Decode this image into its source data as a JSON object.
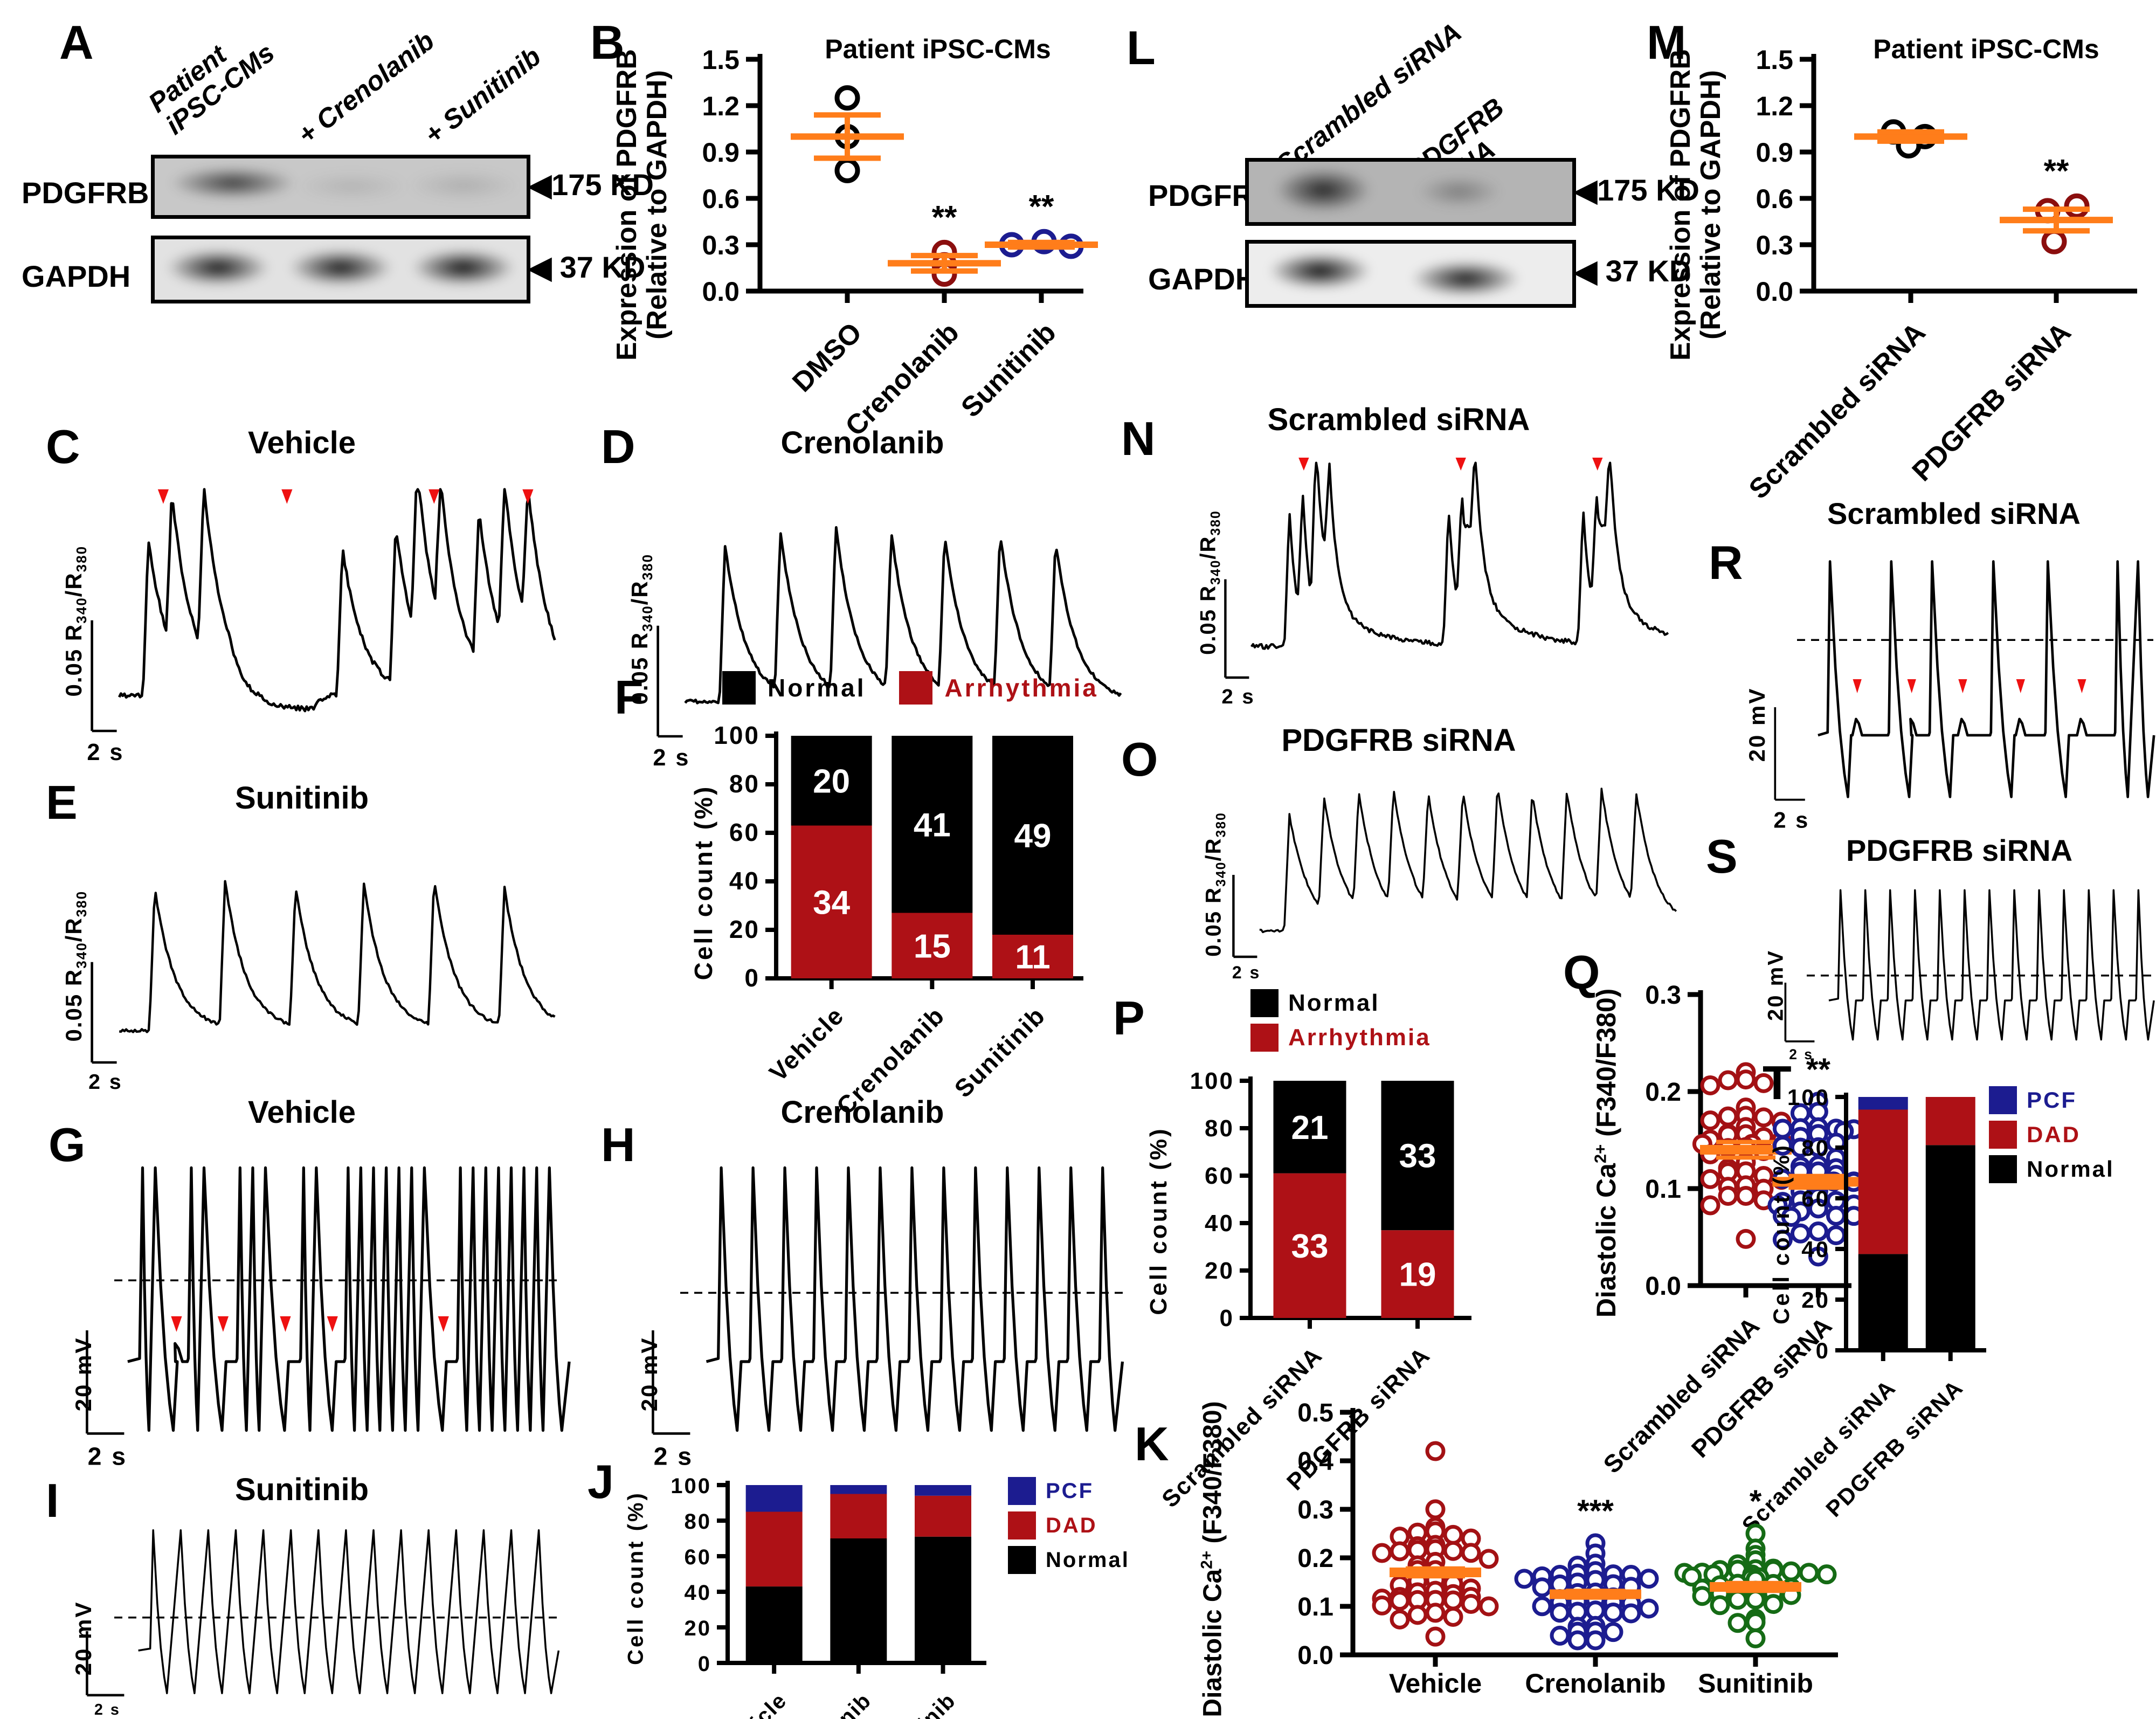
{
  "icons": {
    "band_marker_left": "◀"
  },
  "colors": {
    "mean_bar_orange": "#FF7D1A",
    "arrhythmia_red": "#AE1116",
    "pcf_navy": "#1C1C90",
    "point_dark_red": "#A31114",
    "point_navy": "#1C1C90",
    "point_green": "#156B15",
    "trace_black": "#000000",
    "arrow_red": "#EE1111"
  },
  "panels": {
    "A": {
      "letter": "A",
      "lanes": [
        "Patient iPSC-CMs",
        "+ Crenolanib",
        "+ Sunitinib"
      ],
      "protein1": "PDGFRB",
      "protein2": "GAPDH",
      "marker1": "175 KD",
      "marker2": "37 KD"
    },
    "B": {
      "letter": "B"
    },
    "C": {
      "letter": "C"
    },
    "D": {
      "letter": "D"
    },
    "E": {
      "letter": "E"
    },
    "F": {
      "letter": "F"
    },
    "G": {
      "letter": "G"
    },
    "H": {
      "letter": "H"
    },
    "I": {
      "letter": "I"
    },
    "J": {
      "letter": "J"
    },
    "K": {
      "letter": "K"
    },
    "L": {
      "letter": "L",
      "lanes": [
        "Scrambled siRNA",
        "PDGFRB siRNA"
      ],
      "protein1": "PDGFRB",
      "protein2": "GAPDH",
      "marker1": "175 KD",
      "marker2": "37 KD"
    },
    "M": {
      "letter": "M"
    },
    "N": {
      "letter": "N"
    },
    "O": {
      "letter": "O"
    },
    "P": {
      "letter": "P"
    },
    "Q": {
      "letter": "Q"
    },
    "R": {
      "letter": "R"
    },
    "S": {
      "letter": "S"
    },
    "T": {
      "letter": "T"
    }
  },
  "chart_data": [
    {
      "id": "B",
      "type": "scatter",
      "title": "Patient iPSC-CMs",
      "ylabel": [
        "Expression of PDGFRB",
        "(Relative to GAPDH)"
      ],
      "ylim": [
        0,
        1.5
      ],
      "yticks": [
        0,
        0.3,
        0.6,
        0.9,
        1.2,
        1.5
      ],
      "layout": {
        "x0": 150,
        "y0": 50,
        "pw": 600,
        "ph": 430,
        "centers": [
          0.27,
          0.57,
          0.87
        ]
      },
      "categories": [
        "DMSO",
        "Crenolanib",
        "Sunitinib"
      ],
      "groups": [
        {
          "name": "DMSO",
          "color": "#000000",
          "points": [
            1.25,
            1.0,
            0.78
          ],
          "dx": [
            0,
            0,
            0
          ],
          "mean": 1.0,
          "sem": 0.14,
          "sig": ""
        },
        {
          "name": "Crenolanib",
          "color": "#8B0E0E",
          "points": [
            0.25,
            0.17,
            0.11
          ],
          "dx": [
            0,
            0,
            0
          ],
          "mean": 0.18,
          "sem": 0.05,
          "sig": "**"
        },
        {
          "name": "Sunitinib",
          "color": "#1C1C90",
          "points": [
            0.3,
            0.32,
            0.29
          ],
          "dx": [
            -55,
            5,
            55
          ],
          "mean": 0.3,
          "sem": 0.015,
          "sig": "**"
        }
      ]
    },
    {
      "id": "M",
      "type": "scatter",
      "title": "Patient iPSC-CMs",
      "ylabel": [
        "Expression of PDGFRB",
        "(Relative to GAPDH)"
      ],
      "ylim": [
        0,
        1.5
      ],
      "yticks": [
        0,
        0.3,
        0.6,
        0.9,
        1.2,
        1.5
      ],
      "layout": {
        "x0": 150,
        "y0": 50,
        "pw": 600,
        "ph": 430,
        "centers": [
          0.3,
          0.75
        ]
      },
      "categories": [
        "Scrambled siRNA",
        "PDGFRB siRNA"
      ],
      "groups": [
        {
          "name": "Scrambled siRNA",
          "color": "#000000",
          "points": [
            1.03,
            1.0,
            0.94
          ],
          "dx": [
            -32,
            26,
            -4
          ],
          "mean": 1.0,
          "sem": 0.03,
          "sig": ""
        },
        {
          "name": "PDGFRB siRNA",
          "color": "#8B0E0E",
          "points": [
            0.55,
            0.52,
            0.32
          ],
          "dx": [
            38,
            -16,
            -4
          ],
          "mean": 0.46,
          "sem": 0.07,
          "sig": "**"
        }
      ]
    },
    {
      "id": "F",
      "type": "stacked",
      "ylabel": "Cell count (%)",
      "ylim": [
        0,
        100
      ],
      "layout": {
        "x0": 110,
        "y0": 35,
        "pw": 560,
        "ph": 450,
        "barW": 150,
        "catfont": 46,
        "tickfont": 46
      },
      "categories": [
        "Vehicle",
        "Crenolanib",
        "Sunitinib"
      ],
      "series": [
        {
          "name": "Arrhythmia",
          "color": "#AE1116",
          "pct": [
            63,
            27,
            18
          ],
          "counts": [
            34,
            15,
            11
          ]
        },
        {
          "name": "Normal",
          "color": "#000000",
          "pct": [
            37,
            73,
            82
          ],
          "counts": [
            20,
            41,
            49
          ]
        }
      ]
    },
    {
      "id": "P",
      "type": "stacked",
      "ylabel": "Cell count (%)",
      "ylim": [
        0,
        100
      ],
      "layout": {
        "x0": 120,
        "y0": 30,
        "pw": 400,
        "ph": 440,
        "barW": 135,
        "catfont": 44,
        "tickfont": 44
      },
      "categories": [
        "Scrambled siRNA",
        "PDGFRB siRNA"
      ],
      "series": [
        {
          "name": "Arrhythmia",
          "color": "#AE1116",
          "pct": [
            61,
            37
          ],
          "counts": [
            33,
            19
          ]
        },
        {
          "name": "Normal",
          "color": "#000000",
          "pct": [
            39,
            63
          ],
          "counts": [
            21,
            33
          ]
        }
      ]
    },
    {
      "id": "J",
      "type": "stacked",
      "ylabel": "Cell count (%)",
      "ylim": [
        0,
        100
      ],
      "layout": {
        "x0": 90,
        "y0": 25,
        "pw": 470,
        "ph": 330,
        "barW": 105,
        "catfont": 40,
        "tickfont": 40
      },
      "categories": [
        "Vehicle",
        "Crenolanib",
        "Sunitinib"
      ],
      "series": [
        {
          "name": "Normal",
          "color": "#000000",
          "pct": [
            43,
            70,
            71
          ]
        },
        {
          "name": "DAD",
          "color": "#AE1116",
          "pct": [
            42,
            25,
            23
          ]
        },
        {
          "name": "PCF",
          "color": "#1C1C90",
          "pct": [
            15,
            5,
            6
          ]
        }
      ]
    },
    {
      "id": "T",
      "type": "stacked",
      "ylabel": "Cell count (%)",
      "ylim": [
        0,
        100
      ],
      "layout": {
        "x0": 110,
        "y0": 25,
        "pw": 250,
        "ph": 470,
        "barW": 92,
        "catfont": 42,
        "tickfont": 42
      },
      "categories": [
        "Scrambled siRNA",
        "PDGFRB siRNA"
      ],
      "series": [
        {
          "name": "Normal",
          "color": "#000000",
          "pct": [
            38,
            81
          ]
        },
        {
          "name": "DAD",
          "color": "#AE1116",
          "pct": [
            57,
            19
          ]
        },
        {
          "name": "PCF",
          "color": "#1C1C90",
          "pct": [
            5,
            0
          ]
        }
      ]
    },
    {
      "id": "K",
      "type": "swarm",
      "ylabel": "Diastolic Ca^2+^ (F340/F380)",
      "ylim": [
        0,
        0.5
      ],
      "yticks": [
        0,
        0.1,
        0.2,
        0.3,
        0.4,
        0.5
      ],
      "layout": {
        "x0": 180,
        "y0": 20,
        "pw": 900,
        "ph": 450,
        "centers": [
          0.17,
          0.5,
          0.83
        ],
        "halfw": 135,
        "catfont": 50,
        "catrot": 0
      },
      "categories": [
        "Vehicle",
        "Crenolanib",
        "Sunitinib"
      ],
      "groups": [
        {
          "name": "Vehicle",
          "color": "#A31114",
          "n": 44,
          "mean": 0.17,
          "sd": 0.06,
          "min": 0.005,
          "max": 0.3,
          "extra": [
            0.42
          ],
          "sem": 0.008,
          "sig": "",
          "seed": 11
        },
        {
          "name": "Crenolanib",
          "color": "#1C1C90",
          "n": 42,
          "mean": 0.125,
          "sd": 0.042,
          "min": 0.03,
          "max": 0.23,
          "extra": [],
          "sem": 0.007,
          "sig": "***",
          "seed": 22
        },
        {
          "name": "Sunitinib",
          "color": "#156B15",
          "n": 40,
          "mean": 0.14,
          "sd": 0.048,
          "min": 0.03,
          "max": 0.25,
          "extra": [],
          "sem": 0.008,
          "sig": "*",
          "seed": 33
        }
      ]
    },
    {
      "id": "Q",
      "type": "swarm",
      "ylabel": "Diastolic Ca^2+^ (F340/F380)",
      "ylim": [
        0,
        0.3
      ],
      "yticks": [
        0,
        0.1,
        0.2,
        0.3
      ],
      "layout": {
        "x0": 115,
        "y0": 30,
        "pw": 280,
        "ph": 540,
        "centers": [
          0.3,
          0.78
        ],
        "halfw": 95,
        "catfont": 46,
        "catrot": 45
      },
      "categories": [
        "Scrambled siRNA",
        "PDGFRB siRNA"
      ],
      "groups": [
        {
          "name": "Scrambled siRNA",
          "color": "#A31114",
          "n": 40,
          "mean": 0.14,
          "sd": 0.05,
          "min": 0.02,
          "max": 0.28,
          "extra": [],
          "sem": 0.008,
          "sig": "",
          "seed": 44
        },
        {
          "name": "PDGFRB siRNA",
          "color": "#1C1C90",
          "n": 46,
          "mean": 0.107,
          "sd": 0.04,
          "min": 0.03,
          "max": 0.21,
          "extra": [],
          "sem": 0.006,
          "sig": "**",
          "seed": 55
        }
      ]
    }
  ],
  "traces": [
    {
      "id": "C",
      "kind": "ca",
      "title": "Vehicle",
      "yscale_label": "0.05 R_340_/R_380_",
      "time_label": "2 s",
      "noise": 9,
      "seed": 3,
      "peaks": [
        [
          0.045,
          1.0
        ],
        [
          0.1,
          0.97
        ],
        [
          0.175,
          1.07
        ],
        [
          0.5,
          0.95
        ],
        [
          0.625,
          1.0
        ],
        [
          0.675,
          1.08
        ],
        [
          0.73,
          0.9
        ],
        [
          0.82,
          0.97
        ],
        [
          0.88,
          1.02
        ],
        [
          0.935,
          0.9
        ]
      ],
      "sag": [
        0.225,
        0.465,
        0.05
      ],
      "arrows": [
        [
          0.08,
          0.07
        ],
        [
          0.37,
          0.07
        ],
        [
          0.715,
          0.07
        ],
        [
          0.935,
          0.07
        ]
      ]
    },
    {
      "id": "D",
      "kind": "ca",
      "title": "Crenolanib",
      "yscale_label": "0.05 R_340_/R_380_",
      "time_label": "2 s",
      "noise": 6,
      "seed": 4,
      "peaks": [
        [
          0.07,
          1
        ],
        [
          0.2,
          1.02
        ],
        [
          0.33,
          1.04
        ],
        [
          0.46,
          1
        ],
        [
          0.585,
          0.98
        ],
        [
          0.715,
          1
        ],
        [
          0.845,
          0.95
        ]
      ],
      "arrows": []
    },
    {
      "id": "E",
      "kind": "ca",
      "title": "Sunitinib",
      "yscale_label": "0.05 R_340_/R_380_",
      "time_label": "2 s",
      "noise": 6,
      "seed": 5,
      "peaks": [
        [
          0.06,
          1
        ],
        [
          0.225,
          1.02
        ],
        [
          0.39,
          0.98
        ],
        [
          0.55,
          1
        ],
        [
          0.715,
          1.03
        ],
        [
          0.88,
          0.97
        ]
      ],
      "arrows": []
    },
    {
      "id": "N",
      "kind": "ca",
      "title": "Scrambled siRNA",
      "yscale_label": "0.05 R_340_/R_380_",
      "time_label": "2 s",
      "noise": 9,
      "seed": 6,
      "bursts": [
        [
          0.07,
          4
        ],
        [
          0.46,
          3
        ],
        [
          0.79,
          3
        ]
      ],
      "arrows": [
        [
          0.105,
          0.05
        ],
        [
          0.49,
          0.05
        ],
        [
          0.825,
          0.05
        ]
      ]
    },
    {
      "id": "O",
      "kind": "ca",
      "title": "PDGFRB siRNA",
      "yscale_label": "0.05 R_340_/R_380_",
      "time_label": "2 s",
      "noise": 6,
      "seed": 7,
      "peaks": [
        [
          0.05,
          1
        ],
        [
          0.135,
          0.97
        ],
        [
          0.22,
          1
        ],
        [
          0.305,
          1.02
        ],
        [
          0.39,
          0.98
        ],
        [
          0.475,
          1
        ],
        [
          0.56,
          1.03
        ],
        [
          0.645,
          0.97
        ],
        [
          0.73,
          1
        ],
        [
          0.815,
          1.02
        ],
        [
          0.9,
          0.98
        ]
      ],
      "arrows": []
    },
    {
      "id": "G",
      "kind": "ap",
      "title": "Vehicle",
      "yscale_label": "20 mV",
      "time_label": "2 s",
      "dash": 0.44,
      "spikes": [
        0.02,
        0.05,
        0.135,
        0.165,
        0.25,
        0.28,
        0.31,
        0.4,
        0.43,
        0.505,
        0.535,
        0.565,
        0.595,
        0.625,
        0.655,
        0.685,
        0.77,
        0.8,
        0.83,
        0.86,
        0.89,
        0.92,
        0.95,
        0.98
      ],
      "dads": [
        0.1,
        0.21,
        0.357,
        0.468,
        0.73
      ],
      "arrows": [
        [
          0.1,
          0.555
        ],
        [
          0.21,
          0.555
        ],
        [
          0.357,
          0.555
        ],
        [
          0.468,
          0.555
        ],
        [
          0.73,
          0.555
        ]
      ]
    },
    {
      "id": "H",
      "kind": "ap",
      "title": "Crenolanib",
      "yscale_label": "20 mV",
      "time_label": "2 s",
      "dash": 0.48,
      "spikes": [
        0.05,
        0.125,
        0.2,
        0.275,
        0.35,
        0.425,
        0.5,
        0.575,
        0.65,
        0.725,
        0.8,
        0.875,
        0.95
      ],
      "dads": [],
      "arrows": []
    },
    {
      "id": "I",
      "kind": "ap",
      "title": "Sunitinib",
      "yscale_label": "20 mV",
      "time_label": "2 s",
      "dash": 0.53,
      "spikes": [
        0.045,
        0.11,
        0.175,
        0.24,
        0.305,
        0.37,
        0.435,
        0.5,
        0.565,
        0.63,
        0.695,
        0.76,
        0.825,
        0.89,
        0.955
      ],
      "dads": [],
      "arrows": []
    },
    {
      "id": "R",
      "kind": "ap",
      "title": "Scrambled siRNA",
      "yscale_label": "20 mV",
      "time_label": "2 s",
      "dash": 0.36,
      "spikes": [
        0.05,
        0.23,
        0.35,
        0.53,
        0.69,
        0.895,
        0.955
      ],
      "dads": [
        0.13,
        0.29,
        0.44,
        0.61,
        0.79
      ],
      "arrows": [
        [
          0.13,
          0.5
        ],
        [
          0.29,
          0.5
        ],
        [
          0.44,
          0.5
        ],
        [
          0.61,
          0.5
        ],
        [
          0.79,
          0.5
        ]
      ]
    },
    {
      "id": "S",
      "kind": "ap",
      "title": "PDGFRB siRNA",
      "yscale_label": "20 mV",
      "time_label": "2 s",
      "dash": 0.56,
      "spikes": [
        0.055,
        0.13,
        0.205,
        0.28,
        0.355,
        0.43,
        0.505,
        0.58,
        0.655,
        0.73,
        0.805,
        0.88,
        0.955
      ],
      "dads": [],
      "arrows": []
    }
  ]
}
